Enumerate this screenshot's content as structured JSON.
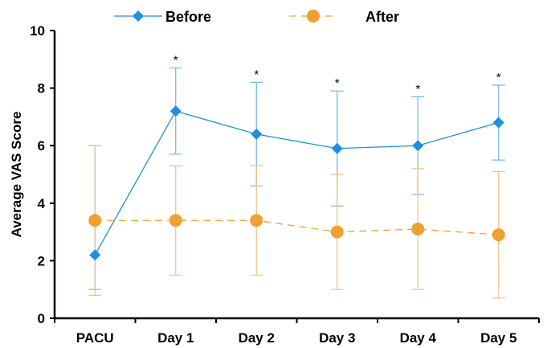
{
  "chart_data": {
    "type": "line",
    "categories": [
      "PACU",
      "Day 1",
      "Day 2",
      "Day 3",
      "Day 4",
      "Day 5"
    ],
    "ylabel": "Average VAS Score",
    "xlabel": "",
    "ylim": [
      0,
      10
    ],
    "yticks": [
      "0",
      "2",
      "4",
      "6",
      "8",
      "10"
    ],
    "grid": false,
    "legend_position": "top",
    "series": [
      {
        "name": "Before",
        "color": "#1f8fe0",
        "errorbar_color": "#6db6e8",
        "marker": "diamond",
        "line_style": "solid",
        "values": [
          2.2,
          7.2,
          6.4,
          5.9,
          6.0,
          6.8
        ],
        "lower": [
          1.0,
          5.7,
          4.6,
          3.9,
          4.3,
          5.5
        ],
        "upper": [
          6.0,
          8.7,
          8.2,
          7.9,
          7.7,
          8.1
        ]
      },
      {
        "name": "After",
        "color": "#f0a030",
        "errorbar_color": "#f0c080",
        "marker": "circle",
        "line_style": "dashed",
        "values": [
          3.4,
          3.4,
          3.4,
          3.0,
          3.1,
          2.9
        ],
        "lower": [
          0.8,
          1.5,
          1.5,
          1.0,
          1.0,
          0.7
        ],
        "upper": [
          6.0,
          5.3,
          5.3,
          5.0,
          5.2,
          5.1
        ]
      }
    ],
    "annotations": [
      "",
      "*",
      "*",
      "*",
      "*",
      "*"
    ]
  }
}
